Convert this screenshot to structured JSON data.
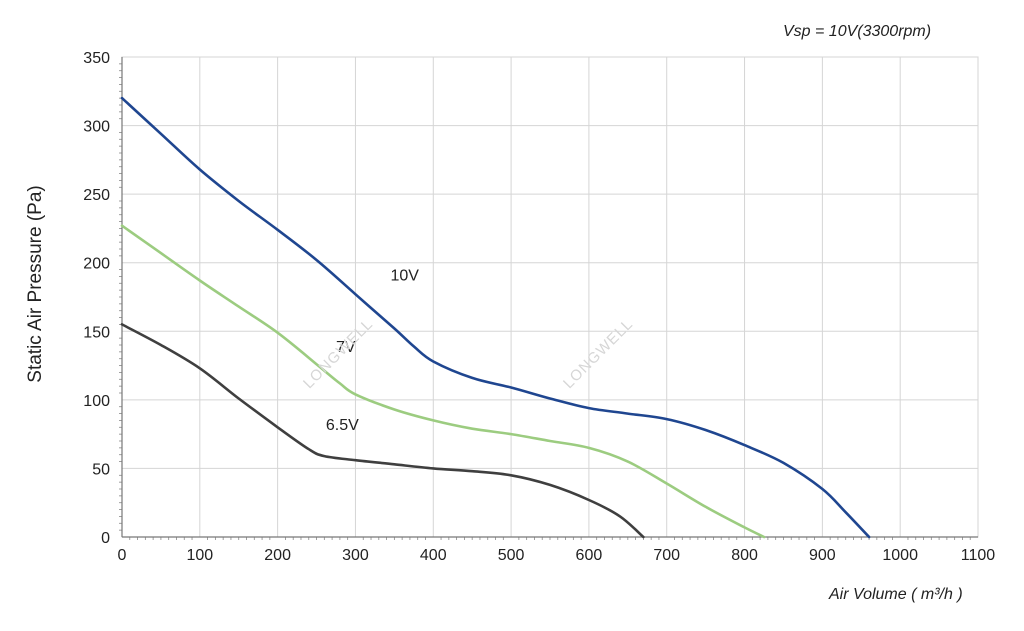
{
  "chart_data": {
    "type": "line",
    "subtitle": "Vsp = 10V(3300rpm)",
    "xlabel": "Air Volume ( m³/h )",
    "ylabel": "Static Air Pressure  (Pa)",
    "xlim": [
      0,
      1100
    ],
    "ylim": [
      0,
      350
    ],
    "xticks": [
      0,
      100,
      200,
      300,
      400,
      500,
      600,
      700,
      800,
      900,
      1000,
      1100
    ],
    "yticks": [
      0,
      50,
      100,
      150,
      200,
      250,
      300,
      350
    ],
    "grid": true,
    "series": [
      {
        "name": "10V",
        "color": "#1f4690",
        "x": [
          0,
          50,
          100,
          150,
          200,
          250,
          300,
          350,
          375,
          400,
          450,
          500,
          550,
          600,
          650,
          700,
          750,
          800,
          850,
          900,
          930,
          960
        ],
        "y": [
          320,
          294,
          268,
          245,
          224,
          202,
          177,
          152,
          139,
          128,
          116,
          109,
          101,
          94,
          90,
          86,
          78,
          67,
          54,
          35,
          18,
          0
        ]
      },
      {
        "name": "7V",
        "color": "#9ccc80",
        "x": [
          0,
          50,
          100,
          150,
          200,
          250,
          280,
          300,
          350,
          400,
          450,
          500,
          550,
          600,
          650,
          700,
          750,
          800,
          825
        ],
        "y": [
          227,
          207,
          187,
          168,
          149,
          126,
          112,
          104,
          93,
          85,
          79,
          75,
          70,
          65,
          55,
          39,
          22,
          7,
          0
        ]
      },
      {
        "name": "6.5V",
        "color": "#3f3f3f",
        "x": [
          0,
          50,
          100,
          150,
          200,
          240,
          260,
          300,
          350,
          400,
          450,
          500,
          550,
          600,
          640,
          670
        ],
        "y": [
          155,
          140,
          123,
          101,
          80,
          64,
          59,
          56,
          53,
          50,
          48,
          45,
          38,
          27,
          15,
          0
        ]
      }
    ],
    "series_labels": [
      {
        "text": "10V",
        "x": 345,
        "y": 187
      },
      {
        "text": "7V",
        "x": 275,
        "y": 135
      },
      {
        "text": "6.5V",
        "x": 262,
        "y": 78
      }
    ]
  },
  "watermark": "LONGWELL"
}
